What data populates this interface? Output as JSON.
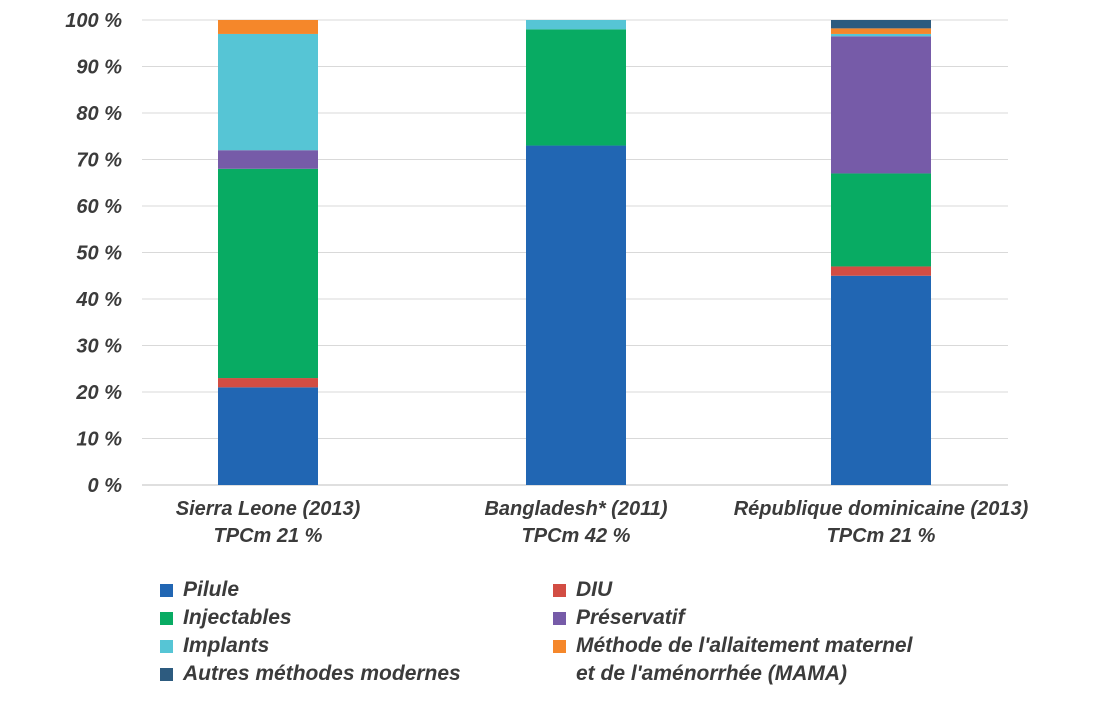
{
  "chart_data": {
    "type": "bar",
    "stacked": true,
    "categories": [
      {
        "line1": "Sierra Leone (2013)",
        "line2": "TPCm 21 %"
      },
      {
        "line1": "Bangladesh* (2011)",
        "line2": "TPCm 42 %"
      },
      {
        "line1": "République dominicaine (2013)",
        "line2": "TPCm 21 %"
      }
    ],
    "y_ticks": [
      "0 %",
      "10 %",
      "20 %",
      "30 %",
      "40 %",
      "50 %",
      "60 %",
      "70 %",
      "80 %",
      "90 %",
      "100 %"
    ],
    "ylim": [
      0,
      100
    ],
    "grid": true,
    "legend_position": "bottom",
    "series": [
      {
        "name": "Pilule",
        "color": "#2166b3",
        "values": [
          21,
          73,
          45
        ]
      },
      {
        "name": "DIU",
        "color": "#d24d43",
        "values": [
          2,
          0,
          2
        ]
      },
      {
        "name": "Injectables",
        "color": "#08ab63",
        "values": [
          45,
          25,
          20
        ]
      },
      {
        "name": "Préservatif",
        "color": "#765ba8",
        "values": [
          4,
          0,
          29.5
        ]
      },
      {
        "name": "Implants",
        "color": "#56c5d5",
        "values": [
          25,
          2,
          0.5
        ]
      },
      {
        "name": "Méthode de l'allaitement maternel\net de l'aménorrhée (MAMA)",
        "color": "#f5872a",
        "values": [
          3,
          0,
          1.2
        ]
      },
      {
        "name": "Autres méthodes modernes",
        "color": "#2d5b7f",
        "values": [
          0,
          0,
          1.8
        ]
      }
    ]
  }
}
